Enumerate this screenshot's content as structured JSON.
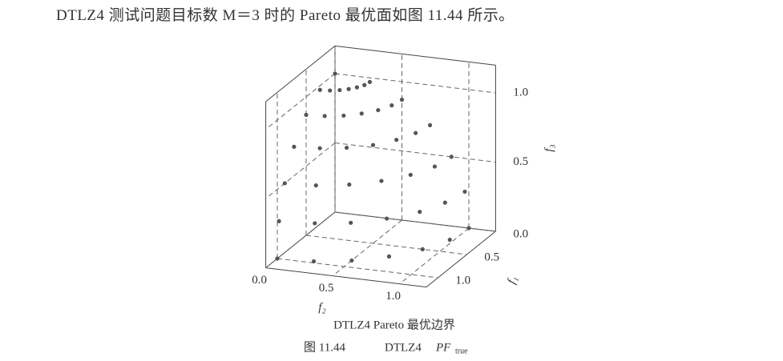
{
  "paragraph": "DTLZ4 测试问题目标数 M＝3 时的 Pareto 最优面如图 11.44 所示。",
  "chart_data": {
    "type": "scatter3d",
    "title": "DTLZ4 Pareto 最优边界",
    "xlabel": "f₁",
    "ylabel": "f₂",
    "zlabel": "f₃",
    "color": "#555555",
    "grid": true,
    "xlim": [
      0,
      1.2
    ],
    "ylim": [
      0,
      1.2
    ],
    "zlim": [
      0,
      1.2
    ],
    "xticks": [
      {
        "value": 0,
        "label": "0.0"
      },
      0.5,
      {
        "value": 1,
        "label": "1.0"
      }
    ],
    "yticks": [
      {
        "value": 0,
        "label": "0.0"
      },
      0.5,
      {
        "value": 1,
        "label": "1.0"
      }
    ],
    "zticks": [
      {
        "value": 0,
        "label": "0.0"
      },
      0.5,
      {
        "value": 1,
        "label": "1.0"
      }
    ],
    "f1": [
      1,
      0.97,
      0.87,
      0.71,
      0.5,
      0.26,
      0,
      0.97,
      0.93,
      0.84,
      0.68,
      0.48,
      0.25,
      0,
      0.87,
      0.84,
      0.75,
      0.61,
      0.43,
      0.22,
      0,
      0.71,
      0.68,
      0.61,
      0.5,
      0.35,
      0.18,
      0,
      0.5,
      0.48,
      0.43,
      0.35,
      0.25,
      0.13,
      0,
      0.26,
      0.25,
      0.22,
      0.18,
      0.13,
      0.07,
      0,
      0
    ],
    "f2": [
      0,
      0.26,
      0.5,
      0.71,
      0.87,
      0.97,
      1,
      0,
      0.25,
      0.48,
      0.68,
      0.84,
      0.93,
      0.97,
      0,
      0.22,
      0.43,
      0.61,
      0.75,
      0.84,
      0.87,
      0,
      0.18,
      0.35,
      0.5,
      0.61,
      0.68,
      0.71,
      0,
      0.13,
      0.25,
      0.35,
      0.43,
      0.48,
      0.5,
      0,
      0.07,
      0.13,
      0.18,
      0.22,
      0.25,
      0.26,
      0
    ],
    "f3": [
      0,
      0,
      0,
      0,
      0,
      0,
      0,
      0.26,
      0.26,
      0.26,
      0.26,
      0.26,
      0.26,
      0.26,
      0.5,
      0.5,
      0.5,
      0.5,
      0.5,
      0.5,
      0.5,
      0.71,
      0.71,
      0.71,
      0.71,
      0.71,
      0.71,
      0.71,
      0.87,
      0.87,
      0.87,
      0.87,
      0.87,
      0.87,
      0.87,
      0.97,
      0.97,
      0.97,
      0.97,
      0.97,
      0.97,
      0.97,
      1
    ]
  },
  "caption": {
    "number": "图 11.44",
    "label": "DTLZ4",
    "symbol": "PF",
    "subscript": "true"
  }
}
